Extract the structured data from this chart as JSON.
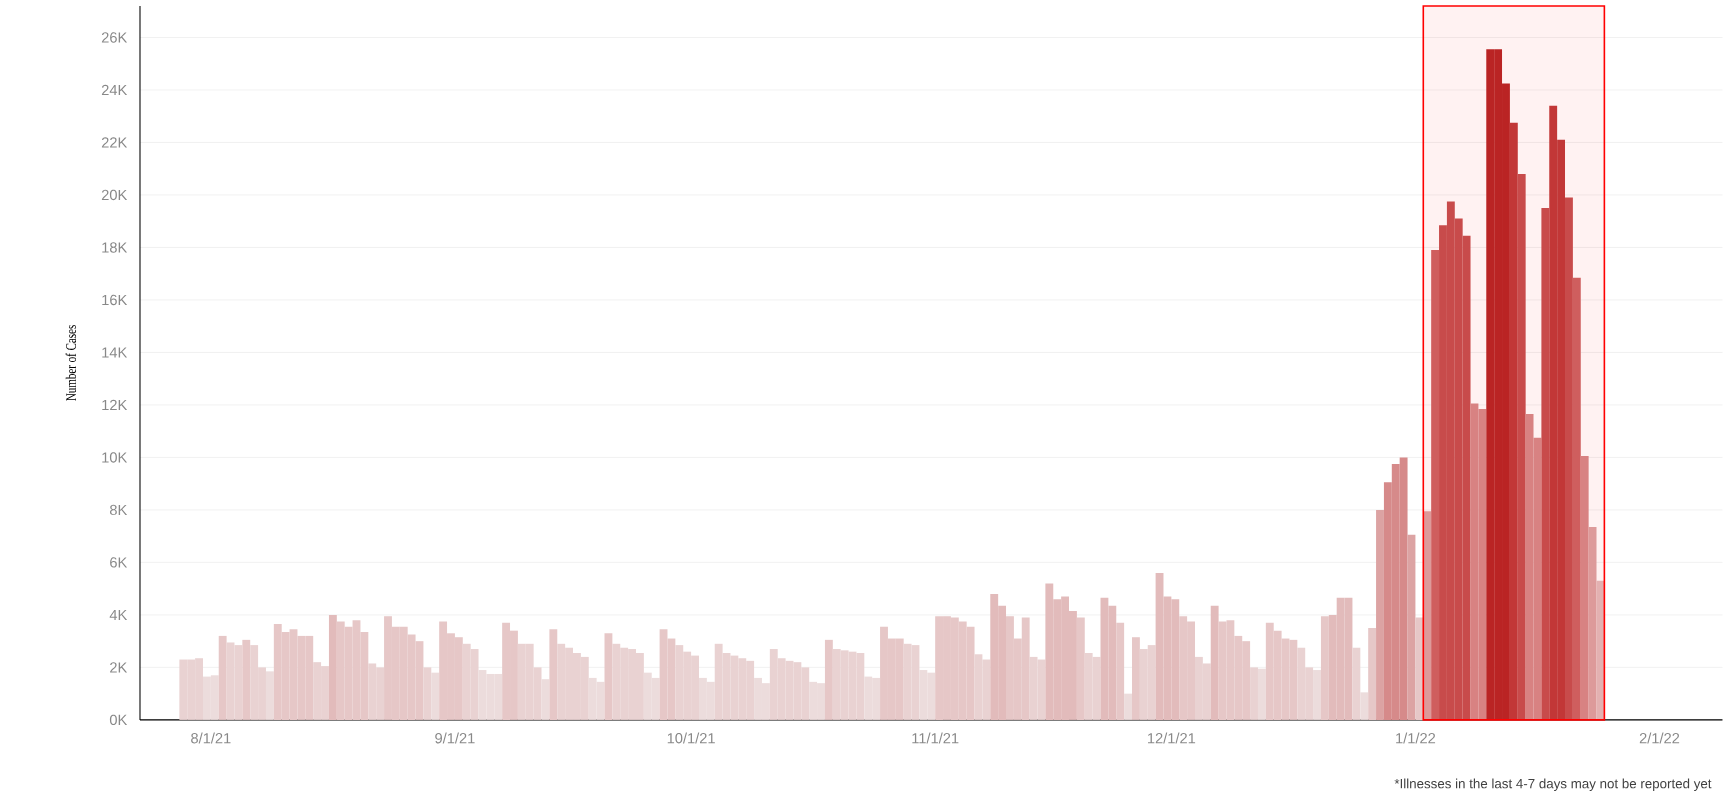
{
  "chart_data": {
    "type": "bar",
    "ylabel": "Number of Cases",
    "annotations": [
      "*Illnesses in the last 4-7 days may not be reported yet"
    ],
    "x": [
      "2021-07-28",
      "2021-07-29",
      "2021-07-30",
      "2021-07-31",
      "2021-08-01",
      "2021-08-02",
      "2021-08-03",
      "2021-08-04",
      "2021-08-05",
      "2021-08-06",
      "2021-08-07",
      "2021-08-08",
      "2021-08-09",
      "2021-08-10",
      "2021-08-11",
      "2021-08-12",
      "2021-08-13",
      "2021-08-14",
      "2021-08-15",
      "2021-08-16",
      "2021-08-17",
      "2021-08-18",
      "2021-08-19",
      "2021-08-20",
      "2021-08-21",
      "2021-08-22",
      "2021-08-23",
      "2021-08-24",
      "2021-08-25",
      "2021-08-26",
      "2021-08-27",
      "2021-08-28",
      "2021-08-29",
      "2021-08-30",
      "2021-08-31",
      "2021-09-01",
      "2021-09-02",
      "2021-09-03",
      "2021-09-04",
      "2021-09-05",
      "2021-09-06",
      "2021-09-07",
      "2021-09-08",
      "2021-09-09",
      "2021-09-10",
      "2021-09-11",
      "2021-09-12",
      "2021-09-13",
      "2021-09-14",
      "2021-09-15",
      "2021-09-16",
      "2021-09-17",
      "2021-09-18",
      "2021-09-19",
      "2021-09-20",
      "2021-09-21",
      "2021-09-22",
      "2021-09-23",
      "2021-09-24",
      "2021-09-25",
      "2021-09-26",
      "2021-09-27",
      "2021-09-28",
      "2021-09-29",
      "2021-09-30",
      "2021-10-01",
      "2021-10-02",
      "2021-10-03",
      "2021-10-04",
      "2021-10-05",
      "2021-10-06",
      "2021-10-07",
      "2021-10-08",
      "2021-10-09",
      "2021-10-10",
      "2021-10-11",
      "2021-10-12",
      "2021-10-13",
      "2021-10-14",
      "2021-10-15",
      "2021-10-16",
      "2021-10-17",
      "2021-10-18",
      "2021-10-19",
      "2021-10-20",
      "2021-10-21",
      "2021-10-22",
      "2021-10-23",
      "2021-10-24",
      "2021-10-25",
      "2021-10-26",
      "2021-10-27",
      "2021-10-28",
      "2021-10-29",
      "2021-10-30",
      "2021-10-31",
      "2021-11-01",
      "2021-11-02",
      "2021-11-03",
      "2021-11-04",
      "2021-11-05",
      "2021-11-06",
      "2021-11-07",
      "2021-11-08",
      "2021-11-09",
      "2021-11-10",
      "2021-11-11",
      "2021-11-12",
      "2021-11-13",
      "2021-11-14",
      "2021-11-15",
      "2021-11-16",
      "2021-11-17",
      "2021-11-18",
      "2021-11-19",
      "2021-11-20",
      "2021-11-21",
      "2021-11-22",
      "2021-11-23",
      "2021-11-24",
      "2021-11-25",
      "2021-11-26",
      "2021-11-27",
      "2021-11-28",
      "2021-11-29",
      "2021-11-30",
      "2021-12-01",
      "2021-12-02",
      "2021-12-03",
      "2021-12-04",
      "2021-12-05",
      "2021-12-06",
      "2021-12-07",
      "2021-12-08",
      "2021-12-09",
      "2021-12-10",
      "2021-12-11",
      "2021-12-12",
      "2021-12-13",
      "2021-12-14",
      "2021-12-15",
      "2021-12-16",
      "2021-12-17",
      "2021-12-18",
      "2021-12-19",
      "2021-12-20",
      "2021-12-21",
      "2021-12-22",
      "2021-12-23",
      "2021-12-24",
      "2021-12-25",
      "2021-12-26",
      "2021-12-27",
      "2021-12-28",
      "2021-12-29",
      "2021-12-30",
      "2021-12-31",
      "2022-01-01",
      "2022-01-02",
      "2022-01-03",
      "2022-01-04",
      "2022-01-05",
      "2022-01-06",
      "2022-01-07",
      "2022-01-08",
      "2022-01-09",
      "2022-01-10",
      "2022-01-11",
      "2022-01-12",
      "2022-01-13",
      "2022-01-14",
      "2022-01-15",
      "2022-01-16",
      "2022-01-17",
      "2022-01-18",
      "2022-01-19",
      "2022-01-20",
      "2022-01-21",
      "2022-01-22",
      "2022-01-23",
      "2022-01-24"
    ],
    "values": [
      2300,
      2300,
      2350,
      1650,
      1700,
      3200,
      2950,
      2850,
      3050,
      2850,
      2000,
      1850,
      3650,
      3350,
      3450,
      3200,
      3200,
      2200,
      2050,
      4000,
      3750,
      3550,
      3800,
      3350,
      2150,
      2000,
      3950,
      3550,
      3550,
      3250,
      3000,
      2000,
      1800,
      3750,
      3300,
      3150,
      2900,
      2700,
      1900,
      1750,
      1750,
      3700,
      3400,
      2900,
      2900,
      2000,
      1550,
      3450,
      2900,
      2750,
      2550,
      2400,
      1600,
      1450,
      3300,
      2900,
      2750,
      2700,
      2550,
      1800,
      1600,
      3450,
      3100,
      2850,
      2600,
      2450,
      1600,
      1450,
      2900,
      2550,
      2450,
      2350,
      2250,
      1600,
      1400,
      2700,
      2350,
      2250,
      2200,
      2000,
      1450,
      1400,
      3050,
      2700,
      2650,
      2600,
      2550,
      1650,
      1600,
      3550,
      3100,
      3100,
      2900,
      2850,
      1900,
      1800,
      3950,
      3950,
      3900,
      3750,
      3550,
      2500,
      2300,
      4800,
      4350,
      3950,
      3100,
      3900,
      2400,
      2300,
      5200,
      4600,
      4700,
      4150,
      3900,
      2550,
      2400,
      4650,
      4350,
      3700,
      1000,
      3150,
      2700,
      2850,
      5600,
      4700,
      4600,
      3950,
      3750,
      2400,
      2150,
      4350,
      3750,
      3800,
      3200,
      3000,
      2000,
      1950,
      3700,
      3400,
      3100,
      3050,
      2750,
      2000,
      1900,
      3950,
      4000,
      4650,
      4650,
      2750,
      1050,
      3500,
      8000,
      9050,
      9750,
      10000,
      7050,
      3900,
      7950,
      17900,
      18850,
      19750,
      19100,
      18450,
      12050,
      11850,
      25550,
      25550,
      24250,
      22750,
      20800,
      11650,
      10750,
      19500,
      23400,
      22100,
      19900,
      16850,
      10050,
      7350,
      5300
    ],
    "colors": [
      "#e9d2d2",
      "#e9d2d2",
      "#e9d2d2",
      "#ecdcdc",
      "#ecdcdc",
      "#e6c7c7",
      "#e9d2d2",
      "#e9d2d2",
      "#e6c7c7",
      "#e9d2d2",
      "#e9d2d2",
      "#ecdcdc",
      "#e6c7c7",
      "#e6c7c7",
      "#e6c7c7",
      "#e6c7c7",
      "#e6c7c7",
      "#e9d2d2",
      "#e9d2d2",
      "#e2bbbb",
      "#e6c7c7",
      "#e6c7c7",
      "#e6c7c7",
      "#e6c7c7",
      "#e9d2d2",
      "#e9d2d2",
      "#e6c7c7",
      "#e6c7c7",
      "#e6c7c7",
      "#e6c7c7",
      "#e6c7c7",
      "#e9d2d2",
      "#ecdcdc",
      "#e6c7c7",
      "#e6c7c7",
      "#e6c7c7",
      "#e9d2d2",
      "#e9d2d2",
      "#ecdcdc",
      "#ecdcdc",
      "#ecdcdc",
      "#e6c7c7",
      "#e6c7c7",
      "#e9d2d2",
      "#e9d2d2",
      "#e9d2d2",
      "#ecdcdc",
      "#e6c7c7",
      "#e9d2d2",
      "#e9d2d2",
      "#e9d2d2",
      "#e9d2d2",
      "#ecdcdc",
      "#ecdcdc",
      "#e6c7c7",
      "#e9d2d2",
      "#e9d2d2",
      "#e9d2d2",
      "#e9d2d2",
      "#ecdcdc",
      "#ecdcdc",
      "#e6c7c7",
      "#e6c7c7",
      "#e9d2d2",
      "#e9d2d2",
      "#e9d2d2",
      "#ecdcdc",
      "#ecdcdc",
      "#e9d2d2",
      "#e9d2d2",
      "#e9d2d2",
      "#e9d2d2",
      "#e9d2d2",
      "#ecdcdc",
      "#ecdcdc",
      "#e9d2d2",
      "#e9d2d2",
      "#e9d2d2",
      "#e9d2d2",
      "#e9d2d2",
      "#ecdcdc",
      "#ecdcdc",
      "#e6c7c7",
      "#e9d2d2",
      "#e9d2d2",
      "#e9d2d2",
      "#e9d2d2",
      "#ecdcdc",
      "#ecdcdc",
      "#e6c7c7",
      "#e6c7c7",
      "#e6c7c7",
      "#e9d2d2",
      "#e9d2d2",
      "#ecdcdc",
      "#ecdcdc",
      "#e6c7c7",
      "#e6c7c7",
      "#e6c7c7",
      "#e6c7c7",
      "#e6c7c7",
      "#e9d2d2",
      "#e9d2d2",
      "#e2bbbb",
      "#e2bbbb",
      "#e6c7c7",
      "#e6c7c7",
      "#e6c7c7",
      "#e9d2d2",
      "#e9d2d2",
      "#e2bbbb",
      "#e2bbbb",
      "#e2bbbb",
      "#e2bbbb",
      "#e6c7c7",
      "#e9d2d2",
      "#e9d2d2",
      "#e2bbbb",
      "#e2bbbb",
      "#e6c7c7",
      "#ecdcdc",
      "#e6c7c7",
      "#e9d2d2",
      "#e9d2d2",
      "#e2bbbb",
      "#e2bbbb",
      "#e2bbbb",
      "#e6c7c7",
      "#e6c7c7",
      "#e9d2d2",
      "#e9d2d2",
      "#e2bbbb",
      "#e6c7c7",
      "#e6c7c7",
      "#e6c7c7",
      "#e6c7c7",
      "#e9d2d2",
      "#ecdcdc",
      "#e6c7c7",
      "#e6c7c7",
      "#e6c7c7",
      "#e6c7c7",
      "#e9d2d2",
      "#e9d2d2",
      "#ecdcdc",
      "#e6c7c7",
      "#e2bbbb",
      "#e2bbbb",
      "#e2bbbb",
      "#e9d2d2",
      "#ecdcdc",
      "#e6c7c7",
      "#dca3a3",
      "#d68a8a",
      "#d68a8a",
      "#d68a8a",
      "#dca3a3",
      "#e6c7c7",
      "#dca3a3",
      "#cd6464",
      "#c65050",
      "#c65050",
      "#c65050",
      "#c65050",
      "#d68a8a",
      "#d68a8a",
      "#b72626",
      "#b72626",
      "#b72626",
      "#bf3a3a",
      "#c65050",
      "#d68a8a",
      "#d68a8a",
      "#c65050",
      "#bf3a3a",
      "#bf3a3a",
      "#c65050",
      "#cd6464",
      "#d68a8a",
      "#dca3a3",
      "#e2bbbb"
    ],
    "xlim": [
      "2021-07-23",
      "2022-02-09"
    ],
    "xticks": [
      {
        "value": "2021-08-01",
        "label": "8/1/21"
      },
      {
        "value": "2021-09-01",
        "label": "9/1/21"
      },
      {
        "value": "2021-10-01",
        "label": "10/1/21"
      },
      {
        "value": "2021-11-01",
        "label": "11/1/21"
      },
      {
        "value": "2021-12-01",
        "label": "12/1/21"
      },
      {
        "value": "2022-01-01",
        "label": "1/1/22"
      },
      {
        "value": "2022-02-01",
        "label": "2/1/22"
      }
    ],
    "ylim": [
      0,
      27200
    ],
    "yticks": [
      {
        "value": 0,
        "label": "0K"
      },
      {
        "value": 2000,
        "label": "2K"
      },
      {
        "value": 4000,
        "label": "4K"
      },
      {
        "value": 6000,
        "label": "6K"
      },
      {
        "value": 8000,
        "label": "8K"
      },
      {
        "value": 10000,
        "label": "10K"
      },
      {
        "value": 12000,
        "label": "12K"
      },
      {
        "value": 14000,
        "label": "14K"
      },
      {
        "value": 16000,
        "label": "16K"
      },
      {
        "value": 18000,
        "label": "18K"
      },
      {
        "value": 20000,
        "label": "20K"
      },
      {
        "value": 22000,
        "label": "22K"
      },
      {
        "value": 24000,
        "label": "24K"
      },
      {
        "value": 26000,
        "label": "26K"
      }
    ],
    "grid": "y",
    "bands": [
      {
        "axis": "x",
        "from": "2022-01-02",
        "to": "2022-01-25",
        "color": "#ff0000"
      }
    ]
  }
}
